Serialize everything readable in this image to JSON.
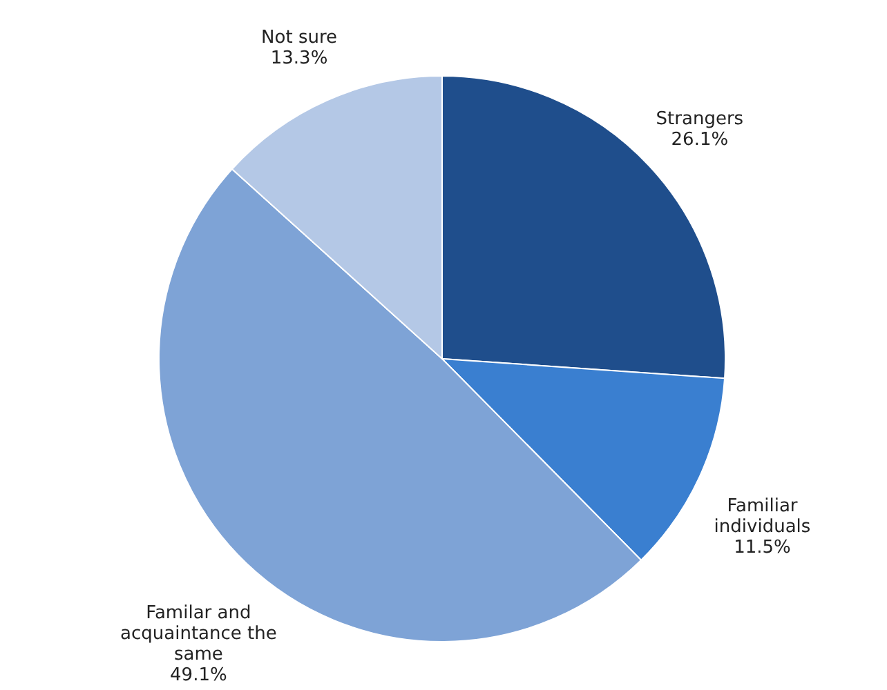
{
  "chart_data": {
    "type": "pie",
    "categories": [
      "Strangers",
      "Familiar\nindividuals",
      "Familar and\nacquaintance the\nsame",
      "Not sure"
    ],
    "values": [
      26.1,
      11.5,
      49.1,
      13.3
    ],
    "value_labels": [
      "26.1%",
      "11.5%",
      "49.1%",
      "13.3%"
    ],
    "colors": [
      "#1f4e8c",
      "#3a7fd0",
      "#7ea3d6",
      "#b4c8e6"
    ],
    "legend": false
  }
}
